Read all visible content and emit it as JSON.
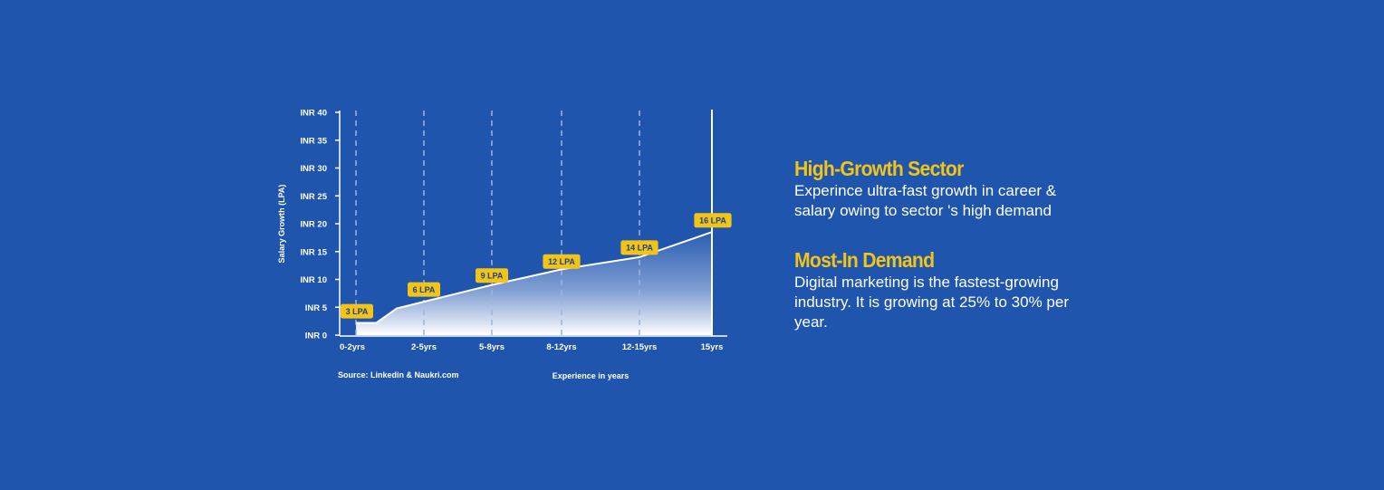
{
  "chart_data": {
    "type": "area",
    "title": "",
    "xlabel": "Experience in years",
    "ylabel": "Salary Growth (LPA)",
    "source": "Source: Linkedin & Naukri.com",
    "ylim": [
      0,
      40
    ],
    "yticks": [
      "INR 0",
      "INR 5",
      "INR 10",
      "INR 15",
      "INR 20",
      "INR 25",
      "INR 30",
      "INR 35",
      "INR 40"
    ],
    "categories": [
      "0-2yrs",
      "2-5yrs",
      "5-8yrs",
      "8-12yrs",
      "12-15yrs",
      "15yrs"
    ],
    "series": [
      {
        "name": "Salary Growth",
        "x": [
          0,
          0.3,
          0.6,
          1,
          2,
          3,
          4,
          5
        ],
        "values": [
          2.2,
          2.2,
          4.8,
          6,
          9,
          11.8,
          14,
          18.5
        ]
      }
    ],
    "data_labels": [
      {
        "category": "0-2yrs",
        "value": 4.3,
        "text": "3 LPA"
      },
      {
        "category": "2-5yrs",
        "value": 8.2,
        "text": "6 LPA"
      },
      {
        "category": "5-8yrs",
        "value": 10.7,
        "text": "9 LPA"
      },
      {
        "category": "8-12yrs",
        "value": 13.2,
        "text": "12 LPA"
      },
      {
        "category": "12-15yrs",
        "value": 15.7,
        "text": "14 LPA"
      },
      {
        "category": "15yrs",
        "value": 20.6,
        "text": "16 LPA"
      }
    ],
    "colors": {
      "background": "#1f55ad",
      "line": "#ffffff",
      "fill_top": "#2b5fb4",
      "fill_bottom": "#ffffff",
      "label_bg": "#f1c417",
      "label_text": "#1f3f86",
      "grid": "#9db4e0"
    }
  },
  "info": [
    {
      "title": "High-Growth Sector",
      "lines": [
        "Experince ultra-fast growth in career &",
        "salary owing to sector 's high demand"
      ]
    },
    {
      "title": "Most-In Demand",
      "lines": [
        "Digital marketing is the fastest-growing",
        "industry. It is growing at 25% to 30% per",
        "year."
      ]
    }
  ]
}
